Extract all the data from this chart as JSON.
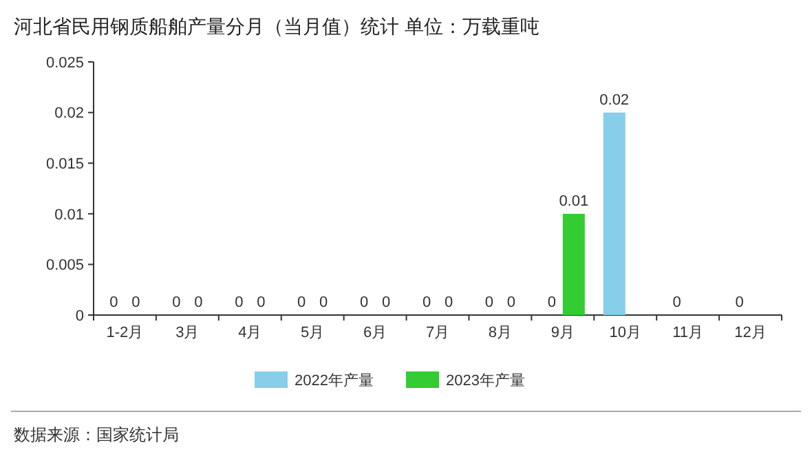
{
  "chart_data": {
    "type": "bar",
    "title": "河北省民用钢质船舶产量分月（当月值）统计  单位：万载重吨",
    "categories": [
      "1-2月",
      "3月",
      "4月",
      "5月",
      "6月",
      "7月",
      "8月",
      "9月",
      "10月",
      "11月",
      "12月"
    ],
    "series": [
      {
        "name": "2022年产量",
        "color": "#87ceeb",
        "values": [
          0,
          0,
          0,
          0,
          0,
          0,
          0,
          0,
          0.02,
          0,
          0
        ]
      },
      {
        "name": "2023年产量",
        "color": "#33cc33",
        "values": [
          0,
          0,
          0,
          0,
          0,
          0,
          0,
          0.01,
          null,
          null,
          null
        ]
      }
    ],
    "ylim": [
      0,
      0.025
    ],
    "yticks": [
      0,
      0.005,
      0.01,
      0.015,
      0.02,
      0.025
    ],
    "grid": false,
    "legend": "bottom",
    "data_labels": true,
    "annotations": [
      "数据来源：国家统计局"
    ]
  }
}
